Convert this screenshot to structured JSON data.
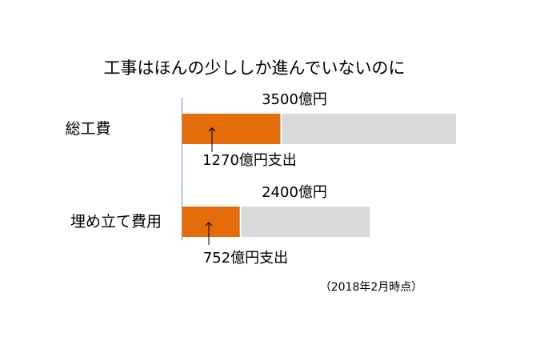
{
  "chart_data": {
    "type": "bar",
    "orientation": "horizontal",
    "title": "工事はほんの少ししか進んでいないのに",
    "categories": [
      "総工費",
      "埋め立て費用"
    ],
    "series": [
      {
        "values": [
          3500,
          2400
        ],
        "color": "#D9D9D9"
      },
      {
        "values": [
          1270,
          752
        ],
        "color": "#E46C0A"
      }
    ],
    "total_labels": [
      "3500億円",
      "2400億円"
    ],
    "spent_labels": [
      "1270億円支出",
      "752億円支出"
    ],
    "note": "（2018年2月時点）",
    "xlim": [
      0,
      3500
    ],
    "grid": false,
    "legend": "none"
  }
}
